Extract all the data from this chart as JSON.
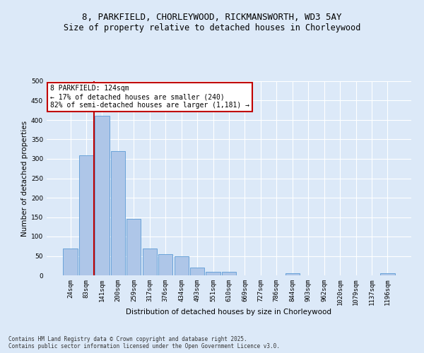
{
  "title1": "8, PARKFIELD, CHORLEYWOOD, RICKMANSWORTH, WD3 5AY",
  "title2": "Size of property relative to detached houses in Chorleywood",
  "xlabel": "Distribution of detached houses by size in Chorleywood",
  "ylabel": "Number of detached properties",
  "categories": [
    "24sqm",
    "83sqm",
    "141sqm",
    "200sqm",
    "259sqm",
    "317sqm",
    "376sqm",
    "434sqm",
    "493sqm",
    "551sqm",
    "610sqm",
    "669sqm",
    "727sqm",
    "786sqm",
    "844sqm",
    "903sqm",
    "962sqm",
    "1020sqm",
    "1079sqm",
    "1137sqm",
    "1196sqm"
  ],
  "values": [
    70,
    310,
    410,
    320,
    145,
    70,
    55,
    50,
    20,
    10,
    10,
    0,
    0,
    0,
    5,
    0,
    0,
    0,
    0,
    0,
    5
  ],
  "bar_color": "#aec6e8",
  "bar_edge_color": "#5b9bd5",
  "vline_pos": 1.5,
  "vline_color": "#c00000",
  "annotation_line1": "8 PARKFIELD: 124sqm",
  "annotation_line2": "← 17% of detached houses are smaller (240)",
  "annotation_line3": "82% of semi-detached houses are larger (1,181) →",
  "annotation_box_color": "#ffffff",
  "annotation_box_edge": "#c00000",
  "ylim": [
    0,
    500
  ],
  "yticks": [
    0,
    50,
    100,
    150,
    200,
    250,
    300,
    350,
    400,
    450,
    500
  ],
  "footer": "Contains HM Land Registry data © Crown copyright and database right 2025.\nContains public sector information licensed under the Open Government Licence v3.0.",
  "bg_color": "#dce9f8",
  "plot_bg_color": "#dce9f8",
  "grid_color": "#ffffff",
  "title_fontsize": 9,
  "subtitle_fontsize": 8.5,
  "axis_label_fontsize": 7.5,
  "tick_fontsize": 6.5,
  "annotation_fontsize": 7
}
